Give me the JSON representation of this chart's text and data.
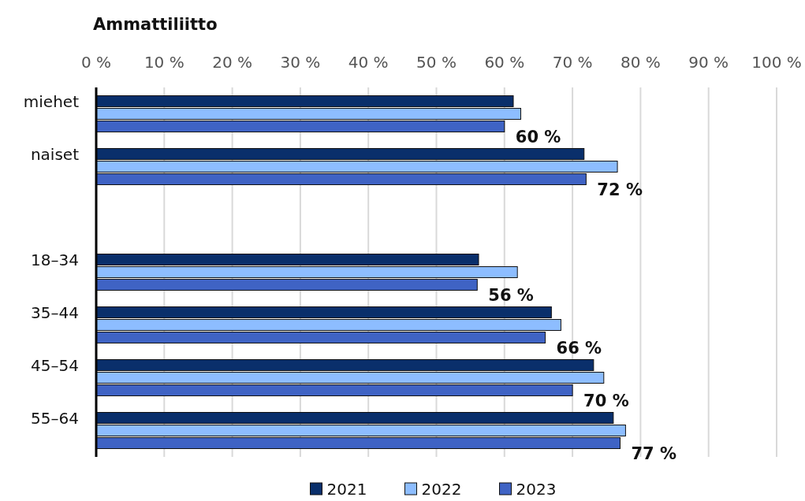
{
  "chart_data": {
    "type": "bar",
    "orientation": "horizontal",
    "title": "Ammattiliitto",
    "categories": [
      "miehet",
      "naiset",
      null,
      "18–34",
      "35–44",
      "45–54",
      "55–64"
    ],
    "series": [
      {
        "name": "2021",
        "color": "#0a2f6b",
        "values": [
          61.3,
          71.7,
          null,
          56.2,
          66.9,
          73.1,
          76.0
        ]
      },
      {
        "name": "2022",
        "color": "#8dbdff",
        "values": [
          62.4,
          76.6,
          null,
          61.9,
          68.3,
          74.6,
          77.8
        ]
      },
      {
        "name": "2023",
        "color": "#3f63c4",
        "values": [
          60,
          72,
          null,
          56,
          66,
          70,
          77
        ],
        "value_labels": [
          "60 %",
          "72 %",
          null,
          "56 %",
          "66 %",
          "70 %",
          "77 %"
        ]
      }
    ],
    "xlim": [
      0,
      100
    ],
    "xticks": [
      {
        "value": 0,
        "label": "0 %"
      },
      {
        "value": 10,
        "label": "10 %"
      },
      {
        "value": 20,
        "label": "20 %"
      },
      {
        "value": 30,
        "label": "30 %"
      },
      {
        "value": 40,
        "label": "40 %"
      },
      {
        "value": 50,
        "label": "50 %"
      },
      {
        "value": 60,
        "label": "60 %"
      },
      {
        "value": 70,
        "label": "70 %"
      },
      {
        "value": 80,
        "label": "80 %"
      },
      {
        "value": 90,
        "label": "90 %"
      },
      {
        "value": 100,
        "label": "100 %"
      }
    ],
    "grid": "x",
    "legend": "bottom"
  }
}
